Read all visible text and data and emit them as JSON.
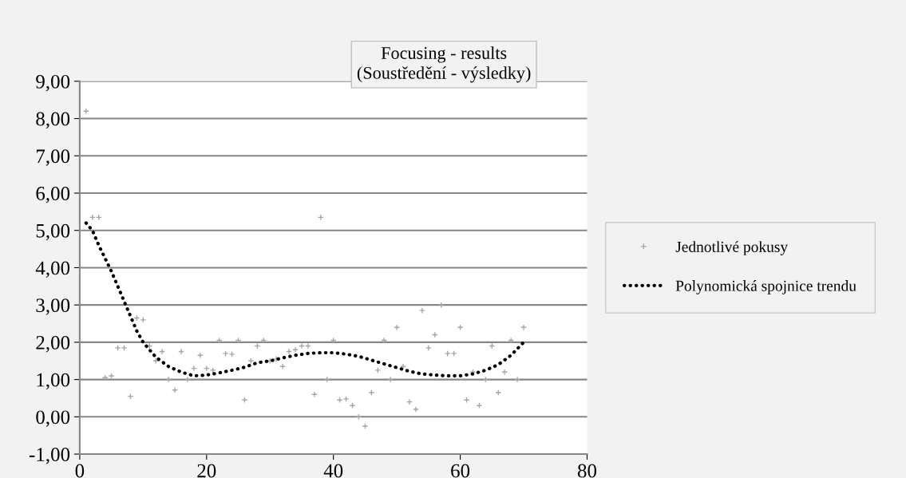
{
  "chart_data": {
    "type": "scatter",
    "title": "Focusing - results\n(Soustředění - výsledky)",
    "xlim": [
      0,
      80
    ],
    "xticks": [
      0,
      20,
      40,
      60,
      80
    ],
    "ylim": [
      -1,
      9
    ],
    "yticks": [
      {
        "value": -1,
        "label": "-1,00"
      },
      {
        "value": 0,
        "label": "0,00"
      },
      {
        "value": 1,
        "label": "1,00"
      },
      {
        "value": 2,
        "label": "2,00"
      },
      {
        "value": 3,
        "label": "3,00"
      },
      {
        "value": 4,
        "label": "4,00"
      },
      {
        "value": 5,
        "label": "5,00"
      },
      {
        "value": 6,
        "label": "6,00"
      },
      {
        "value": 7,
        "label": "7,00"
      },
      {
        "value": 8,
        "label": "8,00"
      },
      {
        "value": 9,
        "label": "9,00"
      }
    ],
    "grid": "y",
    "legend": "right",
    "series": [
      {
        "name": "Jednotlivé pokusy",
        "marker": "cross",
        "color": "#a6a6a6",
        "x": [
          1,
          2,
          3,
          4,
          5,
          6,
          7,
          8,
          9,
          10,
          11,
          12,
          13,
          14,
          15,
          16,
          17,
          18,
          19,
          20,
          21,
          22,
          23,
          24,
          25,
          26,
          27,
          28,
          29,
          30,
          31,
          32,
          33,
          34,
          35,
          36,
          37,
          38,
          39,
          40,
          41,
          42,
          43,
          44,
          45,
          46,
          47,
          48,
          49,
          50,
          51,
          52,
          53,
          54,
          55,
          56,
          57,
          58,
          59,
          60,
          61,
          62,
          63,
          64,
          65,
          66,
          67,
          68,
          69,
          70
        ],
        "values": [
          8.2,
          5.35,
          5.35,
          1.05,
          1.1,
          1.85,
          1.85,
          0.55,
          2.65,
          2.6,
          1.9,
          1.5,
          1.75,
          1.0,
          0.72,
          1.75,
          1.0,
          1.3,
          1.65,
          1.3,
          1.25,
          2.05,
          1.7,
          1.68,
          2.05,
          0.45,
          1.5,
          1.9,
          2.05,
          1.5,
          1.55,
          1.35,
          1.75,
          1.8,
          1.9,
          1.9,
          0.6,
          5.35,
          1.0,
          2.05,
          0.45,
          0.48,
          0.3,
          0.0,
          -0.25,
          0.65,
          1.25,
          2.05,
          1.0,
          2.4,
          1.35,
          0.4,
          0.2,
          2.85,
          1.85,
          2.2,
          3.0,
          1.7,
          1.7,
          2.4,
          0.45,
          1.2,
          0.3,
          1.0,
          1.9,
          0.65,
          1.2,
          2.05,
          1.0,
          2.4
        ]
      },
      {
        "name": "Polynomická spojnice trendu",
        "type": "line",
        "line_style": "dotted",
        "marker": "none",
        "color": "#000000",
        "x": [
          1,
          2,
          3,
          5,
          7,
          9,
          10,
          12,
          14,
          16,
          18,
          20,
          22,
          24,
          26,
          28,
          30,
          32,
          34,
          36,
          38,
          40,
          42,
          44,
          46,
          48,
          50,
          52,
          54,
          56,
          58,
          60,
          62,
          64,
          66,
          68,
          70
        ],
        "values": [
          5.2,
          5.0,
          4.6,
          3.9,
          3.1,
          2.3,
          2.0,
          1.6,
          1.35,
          1.2,
          1.1,
          1.12,
          1.18,
          1.25,
          1.33,
          1.45,
          1.5,
          1.58,
          1.65,
          1.7,
          1.72,
          1.72,
          1.68,
          1.62,
          1.52,
          1.42,
          1.32,
          1.22,
          1.15,
          1.12,
          1.1,
          1.1,
          1.15,
          1.25,
          1.4,
          1.65,
          2.0
        ]
      }
    ]
  }
}
